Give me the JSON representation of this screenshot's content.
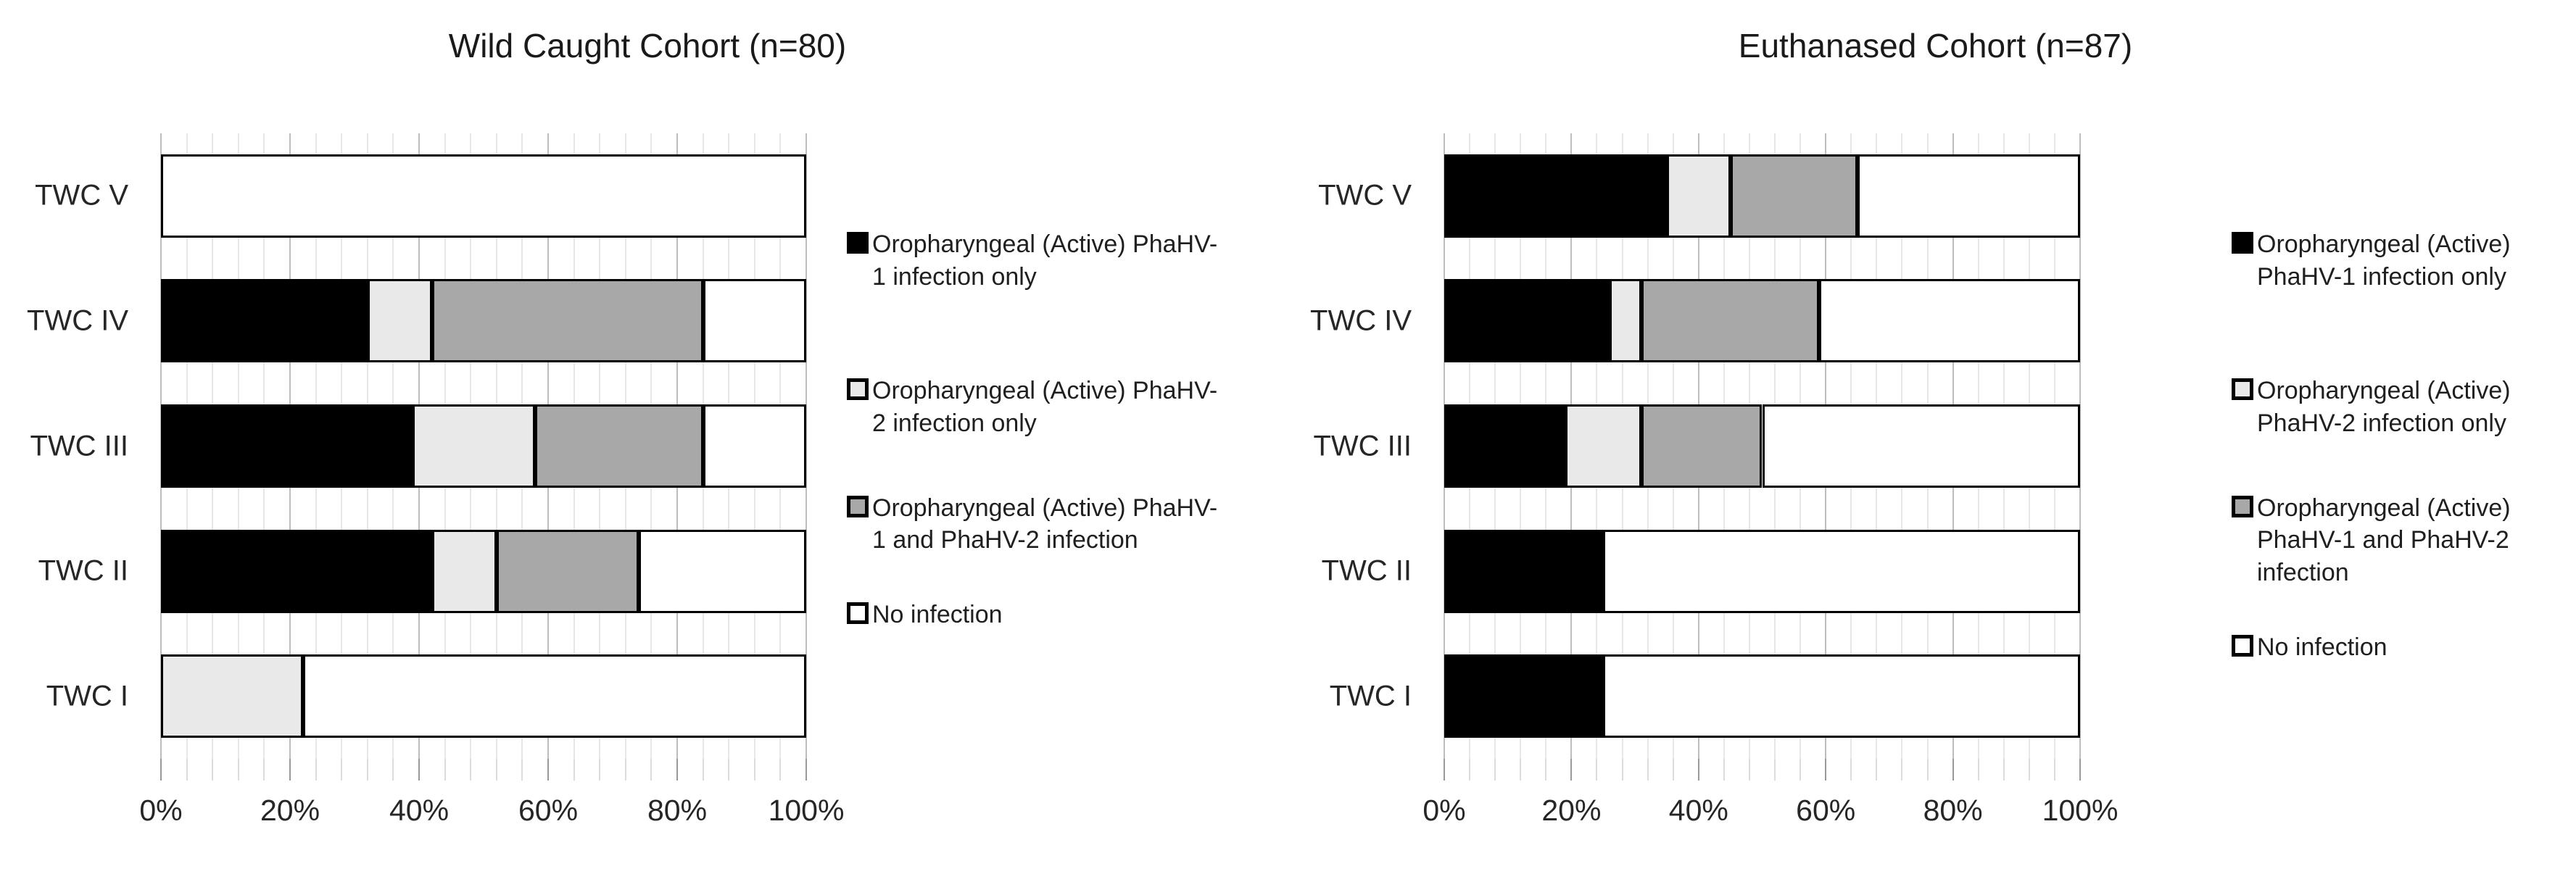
{
  "colors": {
    "series_phahv1": "#000000",
    "series_phahv2": "#e9e9e9",
    "series_both": "#a8a8a8",
    "series_none": "#ffffff",
    "segment_border": "#000000",
    "grid_minor": "#e7e7e7",
    "grid_major": "#bdbdbd",
    "text": "#1f1f1f"
  },
  "chart_data": [
    {
      "type": "bar",
      "orientation": "horizontal",
      "stacked": true,
      "title": "Wild Caught Cohort (n=80)",
      "categories": [
        "TWC V",
        "TWC IV",
        "TWC III",
        "TWC II",
        "TWC I"
      ],
      "x_tick_labels": [
        "0%",
        "20%",
        "40%",
        "60%",
        "80%",
        "100%"
      ],
      "xlim": [
        0,
        100
      ],
      "grid": {
        "minor_step_pct": 4,
        "major_step_pct": 20
      },
      "legend_position": "right",
      "series": [
        {
          "name": "Oropharyngeal (Active) PhaHV-1 infection only",
          "color": "#000000",
          "values": [
            0,
            32,
            39,
            42,
            0
          ]
        },
        {
          "name": "Oropharyngeal (Active) PhaHV-2 infection only",
          "color": "#e9e9e9",
          "values": [
            0,
            10,
            19,
            10,
            22
          ]
        },
        {
          "name": "Oropharyngeal (Active) PhaHV-1 and PhaHV-2 infection",
          "color": "#a8a8a8",
          "values": [
            0,
            42,
            26,
            22,
            0
          ]
        },
        {
          "name": "No infection",
          "color": "#ffffff",
          "values": [
            100,
            16,
            16,
            26,
            78
          ]
        }
      ]
    },
    {
      "type": "bar",
      "orientation": "horizontal",
      "stacked": true,
      "title": "Euthanased Cohort (n=87)",
      "categories": [
        "TWC V",
        "TWC IV",
        "TWC III",
        "TWC II",
        "TWC I"
      ],
      "x_tick_labels": [
        "0%",
        "20%",
        "40%",
        "60%",
        "80%",
        "100%"
      ],
      "xlim": [
        0,
        100
      ],
      "grid": {
        "minor_step_pct": 4,
        "major_step_pct": 20
      },
      "legend_position": "right",
      "series": [
        {
          "name": "Oropharyngeal (Active) PhaHV-1 infection only",
          "color": "#000000",
          "values": [
            35,
            26,
            19,
            25,
            25
          ]
        },
        {
          "name": "Oropharyngeal (Active) PhaHV-2 infection only",
          "color": "#e9e9e9",
          "values": [
            10,
            5,
            12,
            0,
            0
          ]
        },
        {
          "name": "Oropharyngeal (Active) PhaHV-1 and PhaHV-2 infection",
          "color": "#a8a8a8",
          "values": [
            20,
            28,
            19,
            0,
            0
          ]
        },
        {
          "name": "No infection",
          "color": "#ffffff",
          "values": [
            35,
            41,
            50,
            75,
            75
          ]
        }
      ]
    }
  ]
}
